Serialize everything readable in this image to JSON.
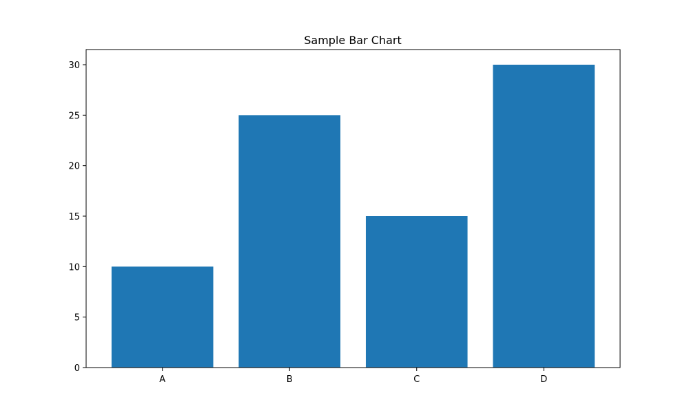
{
  "chart_data": {
    "type": "bar",
    "title": "Sample Bar Chart",
    "xlabel": "",
    "ylabel": "",
    "categories": [
      "A",
      "B",
      "C",
      "D"
    ],
    "values": [
      10,
      25,
      15,
      30
    ],
    "ylim": [
      0,
      31.5
    ],
    "yticks": [
      0,
      5,
      10,
      15,
      20,
      25,
      30
    ],
    "grid": false,
    "colors": {
      "bar": "#1f77b4",
      "axis": "#000000"
    }
  }
}
